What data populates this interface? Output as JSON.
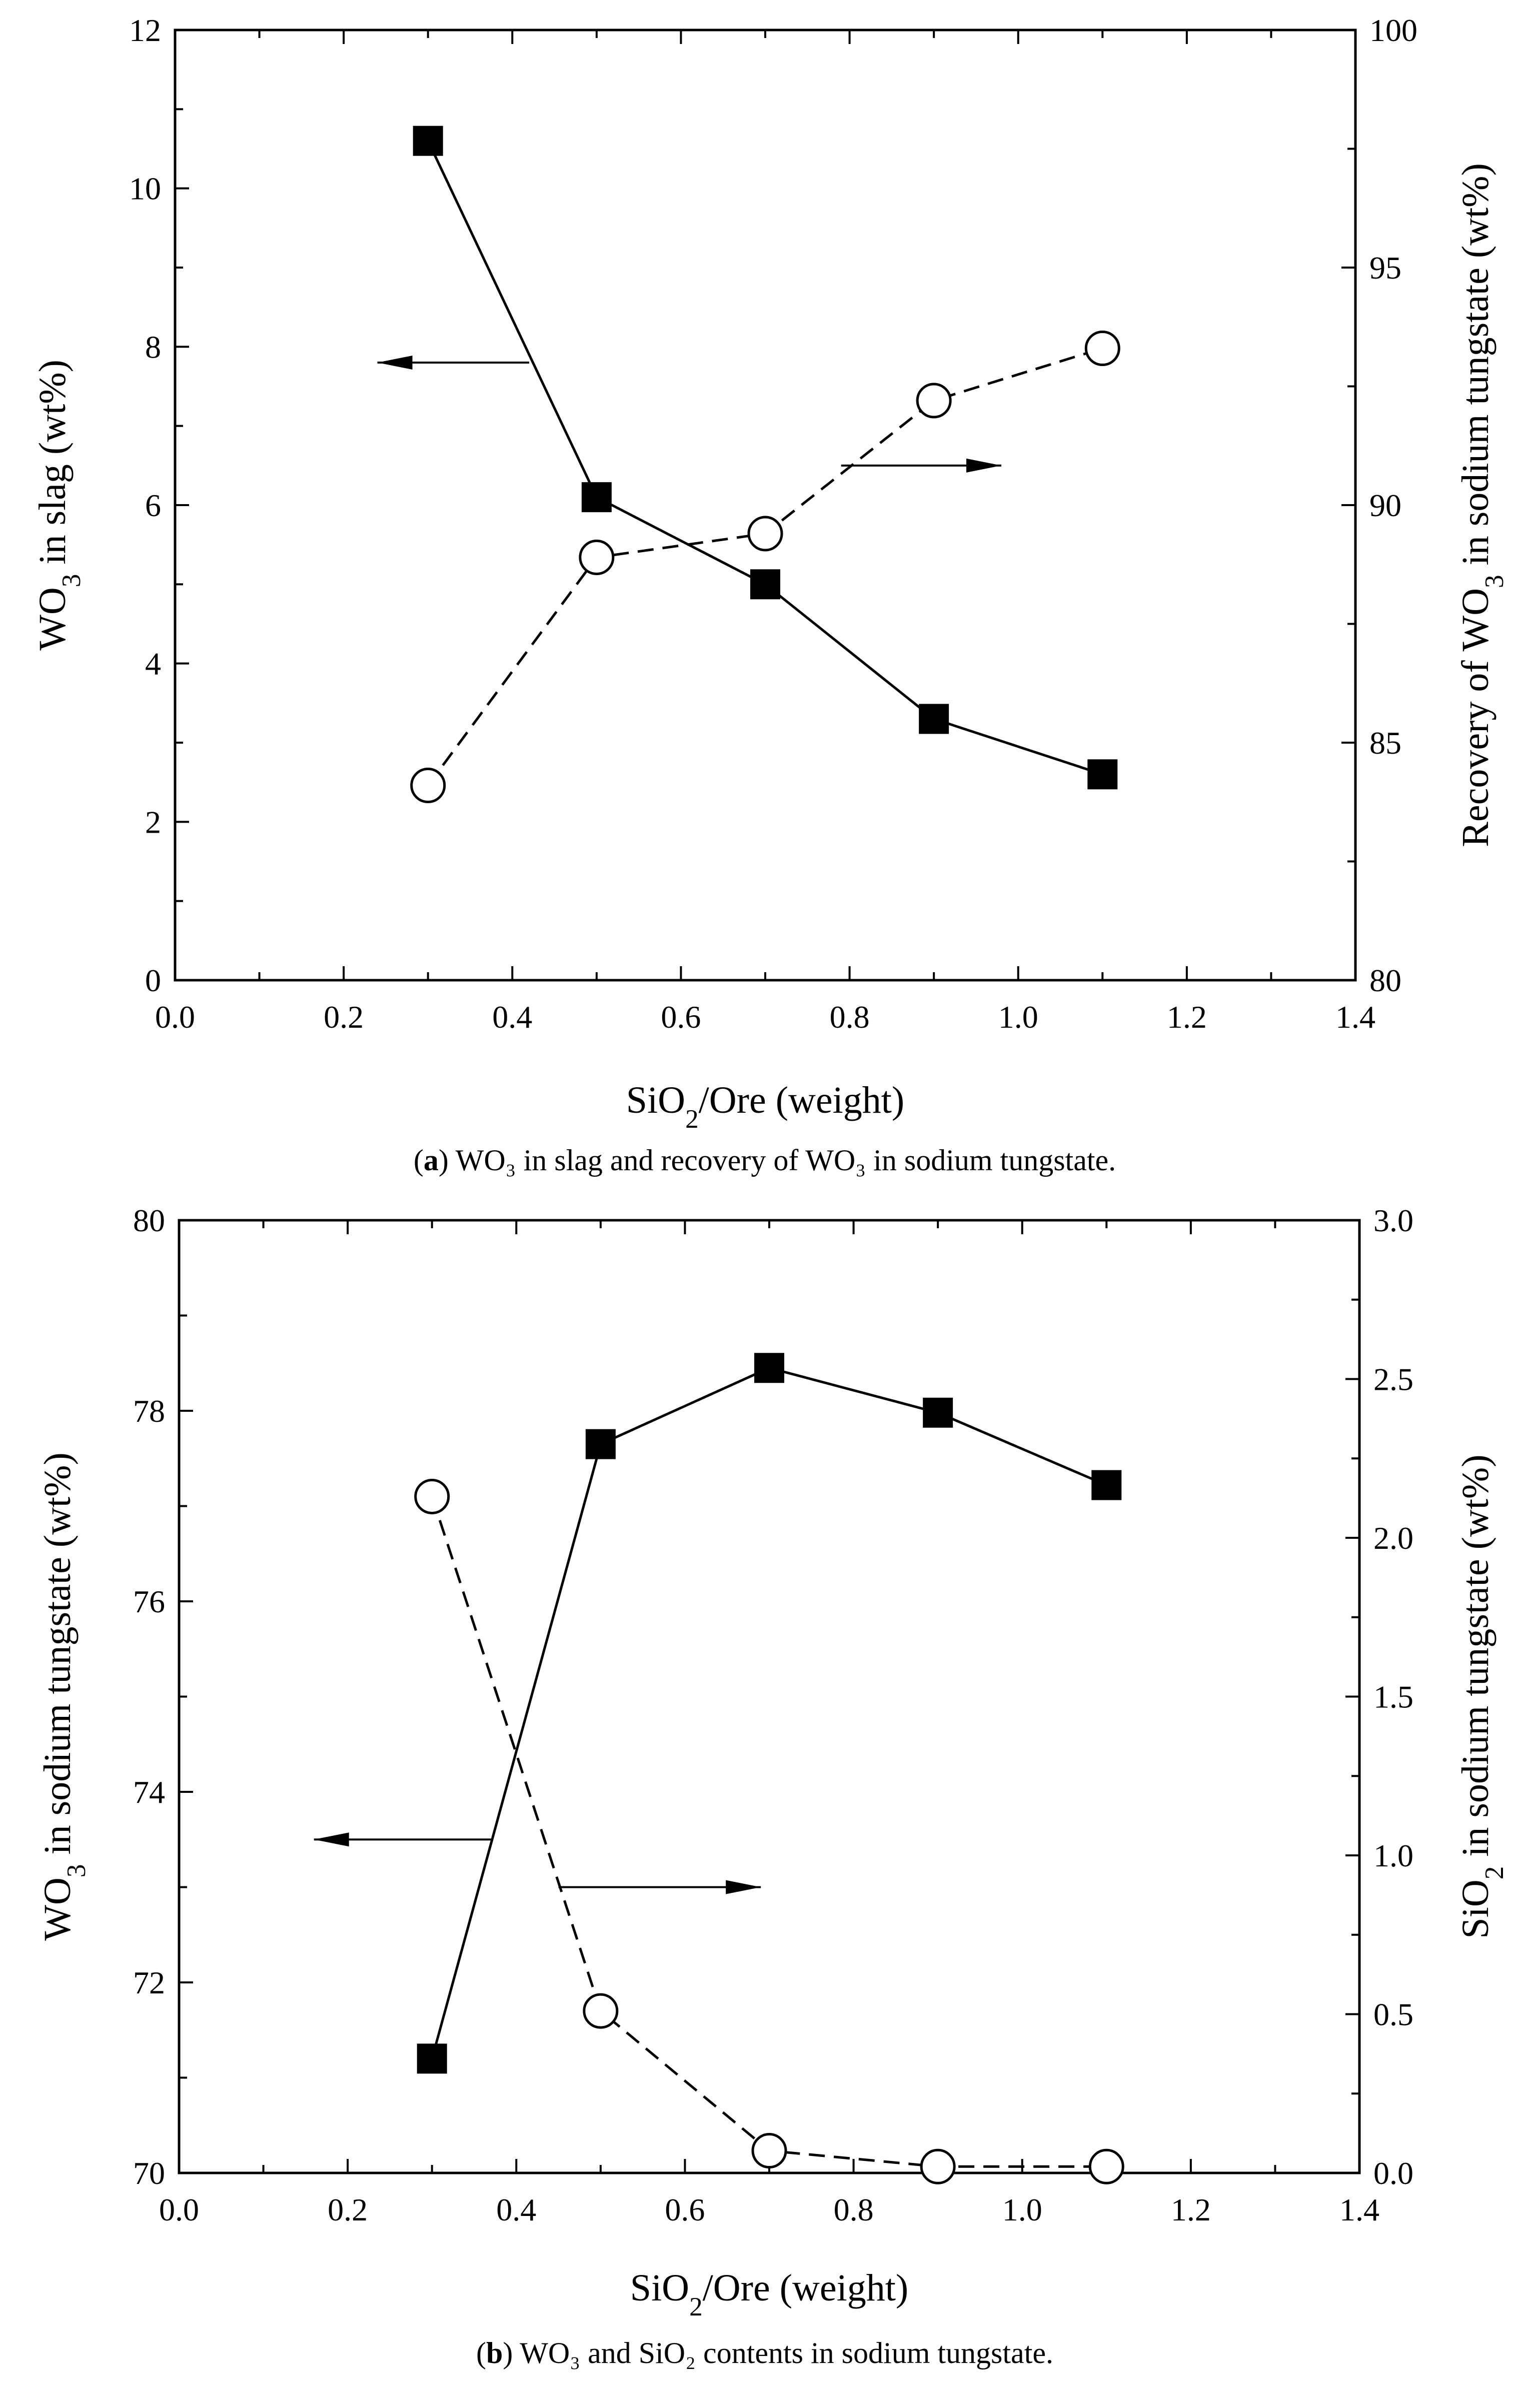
{
  "chart_data": [
    {
      "type": "line",
      "panel": "a",
      "caption_letter": "a",
      "caption_text": " WO₃ in slag and recovery of WO₃ in sodium tungstate.",
      "xlabel": "SiO₂/Ore (weight)",
      "ylabel": "WO₃ in slag (wt%)",
      "y2label": "Recovery of WO₃ in sodium tungstate (wt%)",
      "xlim": [
        0.0,
        1.4
      ],
      "ylim": [
        0,
        12
      ],
      "y2lim": [
        80,
        100
      ],
      "xticks": [
        "0.0",
        "0.2",
        "0.4",
        "0.6",
        "0.8",
        "1.0",
        "1.2",
        "1.4"
      ],
      "yticks": [
        "0",
        "2",
        "4",
        "6",
        "8",
        "10",
        "12"
      ],
      "y2ticks": [
        "80",
        "85",
        "90",
        "95",
        "100"
      ],
      "series": [
        {
          "name": "WO₃ in slag",
          "axis": "left",
          "marker": "filled-square",
          "line": "solid",
          "x": [
            0.3,
            0.5,
            0.7,
            0.9,
            1.1
          ],
          "values": [
            10.6,
            6.1,
            5.0,
            3.3,
            2.6
          ]
        },
        {
          "name": "Recovery of WO₃ in sodium tungstate",
          "axis": "right",
          "marker": "open-circle",
          "line": "dashed",
          "x": [
            0.3,
            0.5,
            0.7,
            0.9,
            1.1
          ],
          "values": [
            84.1,
            88.9,
            89.4,
            92.2,
            93.3
          ]
        }
      ],
      "annotations": [
        {
          "type": "arrow",
          "direction": "left",
          "points_to": "left-axis",
          "from": [
            0.42,
            7.8
          ],
          "to": [
            0.24,
            7.8
          ]
        },
        {
          "type": "arrow",
          "direction": "right",
          "points_to": "right-axis",
          "from": [
            0.79,
            6.5
          ],
          "to": [
            0.98,
            6.5
          ]
        }
      ]
    },
    {
      "type": "line",
      "panel": "b",
      "caption_letter": "b",
      "caption_text": " WO₃ and SiO₂ contents in sodium tungstate.",
      "xlabel": "SiO₂/Ore (weight)",
      "ylabel": "WO₃ in sodium tungstate (wt%)",
      "y2label": "SiO₂ in sodium tungstate (wt%)",
      "xlim": [
        0.0,
        1.4
      ],
      "ylim": [
        70,
        80
      ],
      "y2lim": [
        0.0,
        3.0
      ],
      "xticks": [
        "0.0",
        "0.2",
        "0.4",
        "0.6",
        "0.8",
        "1.0",
        "1.2",
        "1.4"
      ],
      "yticks": [
        "70",
        "72",
        "74",
        "76",
        "78",
        "80"
      ],
      "y2ticks": [
        "0.0",
        "0.5",
        "1.0",
        "1.5",
        "2.0",
        "2.5",
        "3.0"
      ],
      "series": [
        {
          "name": "WO₃ in sodium tungstate",
          "axis": "left",
          "marker": "filled-square",
          "line": "solid",
          "x": [
            0.3,
            0.5,
            0.7,
            0.9,
            1.1
          ],
          "values": [
            71.2,
            77.65,
            78.45,
            77.98,
            77.22
          ]
        },
        {
          "name": "SiO₂ in sodium tungstate",
          "axis": "right",
          "marker": "open-circle",
          "line": "dashed",
          "x": [
            0.3,
            0.5,
            0.7,
            0.9,
            1.1
          ],
          "values": [
            2.13,
            0.51,
            0.07,
            0.02,
            0.02
          ]
        }
      ],
      "annotations": [
        {
          "type": "arrow",
          "direction": "left",
          "points_to": "left-axis",
          "from": [
            0.37,
            73.5
          ],
          "to": [
            0.16,
            73.5
          ]
        },
        {
          "type": "arrow",
          "direction": "right",
          "points_to": "right-axis",
          "from": [
            0.45,
            73.0
          ],
          "to": [
            0.69,
            73.0
          ]
        }
      ]
    }
  ]
}
